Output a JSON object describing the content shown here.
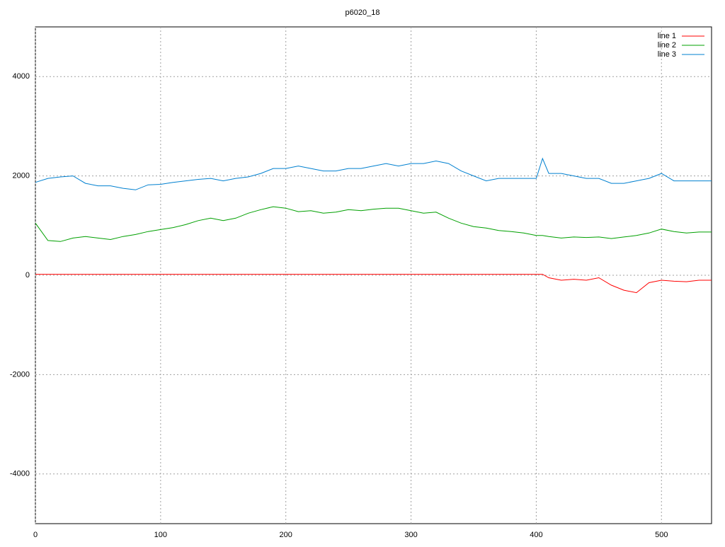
{
  "chart_data": {
    "type": "line",
    "title": "p6020_18",
    "x": [
      0,
      10,
      20,
      30,
      40,
      50,
      60,
      70,
      80,
      90,
      100,
      110,
      120,
      130,
      140,
      150,
      160,
      170,
      180,
      190,
      200,
      210,
      220,
      230,
      240,
      250,
      260,
      270,
      280,
      290,
      300,
      310,
      320,
      330,
      340,
      350,
      360,
      370,
      380,
      390,
      400,
      405,
      410,
      420,
      430,
      440,
      450,
      460,
      470,
      480,
      490,
      500,
      510,
      520,
      530,
      540
    ],
    "series": [
      {
        "name": "line 1",
        "color": "#ff0000",
        "values": [
          20,
          20,
          20,
          20,
          20,
          20,
          20,
          20,
          20,
          20,
          20,
          20,
          20,
          20,
          20,
          20,
          20,
          20,
          20,
          20,
          20,
          20,
          20,
          20,
          20,
          20,
          20,
          20,
          20,
          20,
          20,
          20,
          20,
          20,
          20,
          20,
          20,
          20,
          20,
          20,
          20,
          20,
          -50,
          -100,
          -80,
          -100,
          -50,
          -200,
          -300,
          -350,
          -150,
          -100,
          -120,
          -130,
          -100,
          -100
        ]
      },
      {
        "name": "line 2",
        "color": "#00a000",
        "values": [
          1050,
          700,
          680,
          750,
          780,
          750,
          720,
          780,
          820,
          880,
          920,
          960,
          1020,
          1100,
          1150,
          1100,
          1150,
          1250,
          1320,
          1380,
          1350,
          1280,
          1300,
          1250,
          1270,
          1320,
          1300,
          1330,
          1350,
          1350,
          1300,
          1250,
          1270,
          1150,
          1050,
          980,
          950,
          900,
          880,
          850,
          800,
          800,
          780,
          750,
          770,
          760,
          770,
          740,
          770,
          800,
          850,
          930,
          880,
          850,
          870,
          870
        ]
      },
      {
        "name": "line 3",
        "color": "#0080d0",
        "values": [
          1870,
          1950,
          1980,
          2000,
          1850,
          1800,
          1800,
          1750,
          1720,
          1820,
          1830,
          1870,
          1900,
          1930,
          1950,
          1900,
          1950,
          1980,
          2050,
          2150,
          2150,
          2200,
          2150,
          2100,
          2100,
          2150,
          2150,
          2200,
          2250,
          2200,
          2250,
          2250,
          2300,
          2250,
          2100,
          2000,
          1900,
          1950,
          1950,
          1950,
          1950,
          2350,
          2050,
          2050,
          2000,
          1950,
          1950,
          1850,
          1850,
          1900,
          1950,
          2050,
          1900,
          1900,
          1900,
          1900
        ]
      }
    ],
    "xlim": [
      0,
      540
    ],
    "ylim": [
      -5000,
      5000
    ],
    "xticks": [
      0,
      100,
      200,
      300,
      400,
      500
    ],
    "yticks": [
      -4000,
      -2000,
      0,
      2000,
      4000
    ],
    "grid": true,
    "legend": "top-right"
  }
}
